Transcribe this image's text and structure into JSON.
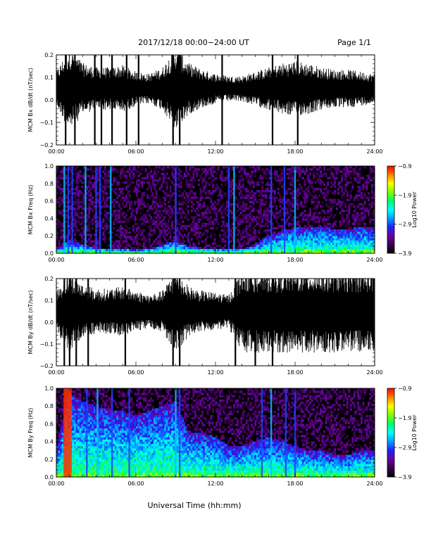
{
  "header": {
    "title": "2017/12/18   00:00−24:00 UT",
    "page": "Page 1/1"
  },
  "footer": {
    "xlabel": "Universal Time (hh:mm)"
  },
  "colors": {
    "trace": "#000000",
    "spectrogram_background": "#000000",
    "colorbar_stops": [
      "#000000",
      "#3c0050",
      "#6a00a0",
      "#2020ff",
      "#00a0ff",
      "#00ffff",
      "#00ff60",
      "#80ff00",
      "#ffff00",
      "#ff8000",
      "#ff0000"
    ]
  },
  "chart_data": [
    {
      "type": "line",
      "ylabel": "MCM Bx dB/dt (nT/sec)",
      "x_tick_labels": [
        "00:00",
        "06:00",
        "12:00",
        "18:00",
        "24:00"
      ],
      "y_tick_labels": [
        "0.2",
        "0.1",
        "0.0",
        "−0.1",
        "−0.2"
      ],
      "xlim": [
        0,
        24
      ],
      "ylim": [
        -0.2,
        0.2
      ],
      "envelope_hours": [
        0,
        1,
        2,
        3,
        4,
        5,
        6,
        7,
        8,
        9,
        10,
        11,
        12,
        13,
        14,
        15,
        16,
        17,
        18,
        19,
        20,
        21,
        22,
        23,
        24
      ],
      "envelope_amplitude": [
        0.08,
        0.2,
        0.12,
        0.1,
        0.1,
        0.11,
        0.08,
        0.07,
        0.1,
        0.2,
        0.12,
        0.09,
        0.07,
        0.06,
        0.06,
        0.08,
        0.1,
        0.12,
        0.13,
        0.12,
        0.1,
        0.09,
        0.09,
        0.08,
        0.07
      ],
      "spikes_hours": [
        0.7,
        1.4,
        2.9,
        3.4,
        4.2,
        5.3,
        6.2,
        8.8,
        9.3,
        12.5,
        16.3,
        18.2
      ]
    },
    {
      "type": "heatmap",
      "ylabel": "MCM Bx Freq (Hz)",
      "x_tick_labels": [
        "00:00",
        "06:00",
        "12:00",
        "18:00",
        "24:00"
      ],
      "y_tick_labels": [
        "1.0",
        "0.8",
        "0.6",
        "0.4",
        "0.2",
        "0.0"
      ],
      "xlim": [
        0,
        24
      ],
      "ylim": [
        0,
        1.0
      ],
      "colorbar_label": "Log10 Power",
      "colorbar_ticks": [
        "−0.9",
        "−1.9",
        "−2.9",
        "−3.9"
      ],
      "colorbar_range": [
        -3.9,
        -0.9
      ],
      "band_top_hz": [
        0.05,
        0.15,
        0.1,
        0.06,
        0.05,
        0.05,
        0.04,
        0.05,
        0.1,
        0.15,
        0.08,
        0.06,
        0.05,
        0.05,
        0.05,
        0.1,
        0.2,
        0.25,
        0.3,
        0.3,
        0.3,
        0.28,
        0.28,
        0.3,
        0.3
      ],
      "broadband_events_hours": [
        0.6,
        0.9,
        1.2,
        2.2,
        3.0,
        3.3,
        4.1,
        9.0,
        13.0,
        13.4,
        16.2,
        17.2,
        18.0
      ]
    },
    {
      "type": "line",
      "ylabel": "MCM By dB/dt (nT/sec)",
      "x_tick_labels": [
        "00:00",
        "06:00",
        "12:00",
        "18:00",
        "24:00"
      ],
      "y_tick_labels": [
        "0.2",
        "0.1",
        "0.0",
        "−0.1",
        "−0.2"
      ],
      "xlim": [
        0,
        24
      ],
      "ylim": [
        -0.2,
        0.2
      ],
      "envelope_hours": [
        0,
        1,
        2,
        3,
        4,
        5,
        6,
        7,
        8,
        9,
        10,
        11,
        12,
        13,
        14,
        15,
        16,
        17,
        18,
        19,
        20,
        21,
        22,
        23,
        24
      ],
      "envelope_amplitude": [
        0.1,
        0.2,
        0.13,
        0.11,
        0.11,
        0.12,
        0.1,
        0.08,
        0.1,
        0.2,
        0.12,
        0.1,
        0.09,
        0.08,
        0.2,
        0.2,
        0.2,
        0.2,
        0.2,
        0.2,
        0.2,
        0.2,
        0.2,
        0.2,
        0.2
      ],
      "spikes_hours": [
        0.6,
        1.0,
        1.5,
        2.4,
        5.2,
        8.8,
        9.3,
        13.5,
        15.0,
        16.3
      ]
    },
    {
      "type": "heatmap",
      "ylabel": "MCM By Freq (Hz)",
      "x_tick_labels": [
        "00:00",
        "06:00",
        "12:00",
        "18:00",
        "24:00"
      ],
      "y_tick_labels": [
        "1.0",
        "0.8",
        "0.6",
        "0.4",
        "0.2",
        "0.0"
      ],
      "xlim": [
        0,
        24
      ],
      "ylim": [
        0,
        1.0
      ],
      "colorbar_label": "Log10 Power",
      "colorbar_ticks": [
        "−0.9",
        "−1.9",
        "−2.9",
        "−3.9"
      ],
      "colorbar_range": [
        -3.9,
        -0.9
      ],
      "band_top_hz": [
        0.3,
        0.95,
        0.85,
        0.8,
        0.75,
        0.75,
        0.7,
        0.75,
        0.8,
        0.85,
        0.5,
        0.5,
        0.45,
        0.35,
        0.35,
        0.4,
        0.45,
        0.4,
        0.35,
        0.3,
        0.3,
        0.25,
        0.25,
        0.3,
        0.3
      ],
      "broadband_events_hours": [
        0.7,
        1.0,
        2.3,
        3.1,
        4.2,
        5.5,
        9.0,
        9.3,
        15.5,
        16.2,
        17.3,
        18.0
      ]
    }
  ]
}
